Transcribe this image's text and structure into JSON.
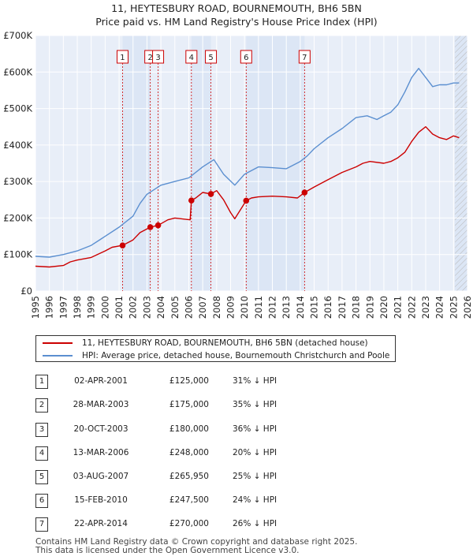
{
  "header": {
    "title_line1": "11, HEYTESBURY ROAD, BOURNEMOUTH, BH6 5BN",
    "title_line2": "Price paid vs. HM Land Registry's House Price Index (HPI)"
  },
  "colors": {
    "property": "#cc0000",
    "hpi": "#5b8fd0",
    "shade": "#dce6f5",
    "grid": "#ffffff"
  },
  "chart_data": {
    "type": "line",
    "title": "11, HEYTESBURY ROAD, BOURNEMOUTH, BH6 5BN — Price paid vs. HM Land Registry's House Price Index (HPI)",
    "xlim": [
      1995,
      2026
    ],
    "ylim": [
      0,
      700000
    ],
    "x_ticks": [
      1995,
      1996,
      1997,
      1998,
      1999,
      2000,
      2001,
      2002,
      2003,
      2004,
      2005,
      2006,
      2007,
      2008,
      2009,
      2010,
      2011,
      2012,
      2013,
      2014,
      2015,
      2016,
      2017,
      2018,
      2019,
      2020,
      2021,
      2022,
      2023,
      2024,
      2025,
      2026
    ],
    "y_ticks": [
      {
        "value": 0,
        "label": "£0"
      },
      {
        "value": 100000,
        "label": "£100K"
      },
      {
        "value": 200000,
        "label": "£200K"
      },
      {
        "value": 300000,
        "label": "£300K"
      },
      {
        "value": 400000,
        "label": "£400K"
      },
      {
        "value": 500000,
        "label": "£500K"
      },
      {
        "value": 600000,
        "label": "£600K"
      },
      {
        "value": 700000,
        "label": "£700K"
      }
    ],
    "shaded_periods": [
      [
        2001.25,
        2003.24
      ],
      [
        2006.19,
        2007.59
      ],
      [
        2010.12,
        2014.31
      ]
    ],
    "forecast_from": 2025.1,
    "series": [
      {
        "name": "11, HEYTESBURY ROAD, BOURNEMOUTH, BH6 5BN (detached house)",
        "color": "#cc0000",
        "x": [
          1995.0,
          1996.0,
          1997.0,
          1997.5,
          1998.0,
          1999.0,
          2000.0,
          2000.5,
          2001.25,
          2002.0,
          2002.5,
          2003.24,
          2003.8,
          2004.5,
          2005.0,
          2006.1,
          2006.19,
          2006.5,
          2007.0,
          2007.59,
          2008.0,
          2008.5,
          2009.0,
          2009.3,
          2010.12,
          2010.5,
          2011.0,
          2012.0,
          2013.0,
          2013.8,
          2014.31,
          2015.0,
          2016.0,
          2017.0,
          2018.0,
          2018.5,
          2019.0,
          2020.0,
          2020.5,
          2021.0,
          2021.5,
          2022.0,
          2022.5,
          2023.0,
          2023.5,
          2024.0,
          2024.5,
          2025.0,
          2025.4
        ],
        "values": [
          68000,
          66000,
          70000,
          80000,
          85000,
          92000,
          110000,
          120000,
          125000,
          140000,
          160000,
          175000,
          180000,
          195000,
          200000,
          195000,
          248000,
          255000,
          270000,
          265950,
          275000,
          250000,
          215000,
          198000,
          247500,
          255000,
          258000,
          260000,
          258000,
          255000,
          270000,
          285000,
          305000,
          325000,
          340000,
          350000,
          355000,
          350000,
          355000,
          365000,
          380000,
          410000,
          435000,
          450000,
          430000,
          420000,
          415000,
          425000,
          420000
        ]
      },
      {
        "name": "HPI: Average price, detached house, Bournemouth Christchurch and Poole",
        "color": "#5b8fd0",
        "x": [
          1995.0,
          1996.0,
          1997.0,
          1998.0,
          1999.0,
          2000.0,
          2001.0,
          2002.0,
          2002.5,
          2003.0,
          2004.0,
          2005.0,
          2006.0,
          2007.0,
          2007.8,
          2008.5,
          2009.3,
          2010.0,
          2010.5,
          2011.0,
          2012.0,
          2013.0,
          2014.0,
          2014.5,
          2015.0,
          2016.0,
          2017.0,
          2018.0,
          2018.8,
          2019.5,
          2020.0,
          2020.5,
          2021.0,
          2021.5,
          2022.0,
          2022.5,
          2023.0,
          2023.5,
          2024.0,
          2024.5,
          2025.0,
          2025.4
        ],
        "values": [
          95000,
          93000,
          100000,
          110000,
          125000,
          150000,
          175000,
          205000,
          240000,
          265000,
          290000,
          300000,
          310000,
          340000,
          360000,
          320000,
          290000,
          320000,
          330000,
          340000,
          338000,
          335000,
          355000,
          370000,
          390000,
          420000,
          445000,
          475000,
          480000,
          470000,
          480000,
          490000,
          510000,
          545000,
          585000,
          610000,
          585000,
          560000,
          565000,
          565000,
          570000,
          570000
        ]
      }
    ],
    "sale_markers": [
      {
        "label": "1",
        "x": 2001.25,
        "value": 125000
      },
      {
        "label": "2",
        "x": 2003.24,
        "value": 175000
      },
      {
        "label": "3",
        "x": 2003.8,
        "value": 180000
      },
      {
        "label": "4",
        "x": 2006.19,
        "value": 248000
      },
      {
        "label": "5",
        "x": 2007.59,
        "value": 265950
      },
      {
        "label": "6",
        "x": 2010.12,
        "value": 247500
      },
      {
        "label": "7",
        "x": 2014.31,
        "value": 270000
      }
    ]
  },
  "legend": {
    "property_label": "11, HEYTESBURY ROAD, BOURNEMOUTH, BH6 5BN (detached house)",
    "hpi_label": "HPI: Average price, detached house, Bournemouth Christchurch and Poole"
  },
  "sales": [
    {
      "num": "1",
      "date": "02-APR-2001",
      "price": "£125,000",
      "hpi": "31% ↓ HPI"
    },
    {
      "num": "2",
      "date": "28-MAR-2003",
      "price": "£175,000",
      "hpi": "35% ↓ HPI"
    },
    {
      "num": "3",
      "date": "20-OCT-2003",
      "price": "£180,000",
      "hpi": "36% ↓ HPI"
    },
    {
      "num": "4",
      "date": "13-MAR-2006",
      "price": "£248,000",
      "hpi": "20% ↓ HPI"
    },
    {
      "num": "5",
      "date": "03-AUG-2007",
      "price": "£265,950",
      "hpi": "25% ↓ HPI"
    },
    {
      "num": "6",
      "date": "15-FEB-2010",
      "price": "£247,500",
      "hpi": "24% ↓ HPI"
    },
    {
      "num": "7",
      "date": "22-APR-2014",
      "price": "£270,000",
      "hpi": "26% ↓ HPI"
    }
  ],
  "footer": {
    "line1": "Contains HM Land Registry data © Crown copyright and database right 2025.",
    "line2": "This data is licensed under the Open Government Licence v3.0."
  }
}
